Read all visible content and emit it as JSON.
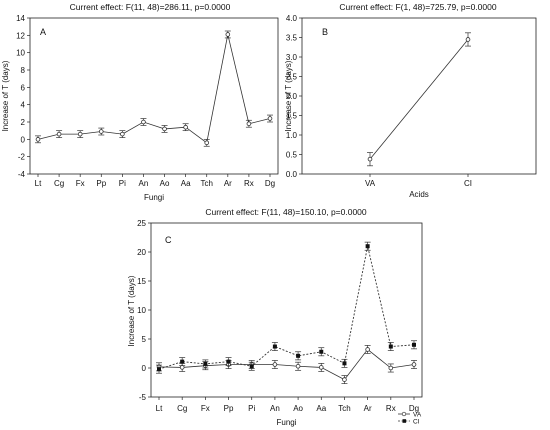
{
  "chart_data": [
    {
      "panel": "A",
      "type": "line",
      "title": "Current effect: F(11, 48)=286.11, p=0.0000",
      "xlabel": "Fungi",
      "ylabel": "Increase of T (days)",
      "ylim": [
        -4,
        14
      ],
      "yticks": [
        -4,
        -2,
        0,
        2,
        4,
        6,
        8,
        10,
        12,
        14
      ],
      "categories": [
        "Lt",
        "Cg",
        "Fx",
        "Pp",
        "Pi",
        "An",
        "Ao",
        "Aa",
        "Tch",
        "Ar",
        "Rx",
        "Dg"
      ],
      "series": [
        {
          "values": [
            0.0,
            0.6,
            0.6,
            0.9,
            0.6,
            2.0,
            1.2,
            1.4,
            -0.4,
            12.1,
            1.8,
            2.4
          ],
          "err": [
            0.4,
            0.4,
            0.4,
            0.4,
            0.4,
            0.4,
            0.4,
            0.4,
            0.4,
            0.4,
            0.4,
            0.4
          ]
        }
      ]
    },
    {
      "panel": "B",
      "type": "line",
      "title": "Current effect: F(1, 48)=725.79, p=0.0000",
      "xlabel": "Acids",
      "ylabel": "Increase of T (days)",
      "ylim": [
        0,
        4
      ],
      "yticks": [
        0.0,
        0.5,
        1.0,
        1.5,
        2.0,
        2.5,
        3.0,
        3.5,
        4.0
      ],
      "categories": [
        "VA",
        "CI"
      ],
      "series": [
        {
          "values": [
            0.38,
            3.45
          ],
          "err": [
            0.17,
            0.17
          ]
        }
      ]
    },
    {
      "panel": "C",
      "type": "line",
      "title": "Current effect: F(11, 48)=150.10, p=0.0000",
      "xlabel": "Fungi",
      "ylabel": "Increase of T (days)",
      "ylim": [
        -5,
        25
      ],
      "yticks": [
        -5,
        0,
        5,
        10,
        15,
        20,
        25
      ],
      "categories": [
        "Lt",
        "Cg",
        "Fx",
        "Pp",
        "Pi",
        "An",
        "Ao",
        "Aa",
        "Tch",
        "Ar",
        "Rx",
        "Dg"
      ],
      "legend": {
        "position": "bottom-right"
      },
      "series": [
        {
          "name": "VA",
          "values": [
            0.2,
            0.1,
            0.4,
            0.6,
            0.6,
            0.6,
            0.3,
            0.1,
            -2.0,
            3.2,
            0.0,
            0.6
          ],
          "err": [
            0.7,
            0.7,
            0.7,
            0.7,
            0.7,
            0.7,
            0.7,
            0.7,
            0.7,
            0.7,
            0.7,
            0.7
          ]
        },
        {
          "name": "CI",
          "values": [
            -0.2,
            1.1,
            0.7,
            1.1,
            0.3,
            3.7,
            2.1,
            2.8,
            0.8,
            21.0,
            3.7,
            4.0
          ],
          "err": [
            0.7,
            0.7,
            0.7,
            0.7,
            0.7,
            0.7,
            0.7,
            0.7,
            0.7,
            0.7,
            0.7,
            0.7
          ]
        }
      ]
    }
  ]
}
